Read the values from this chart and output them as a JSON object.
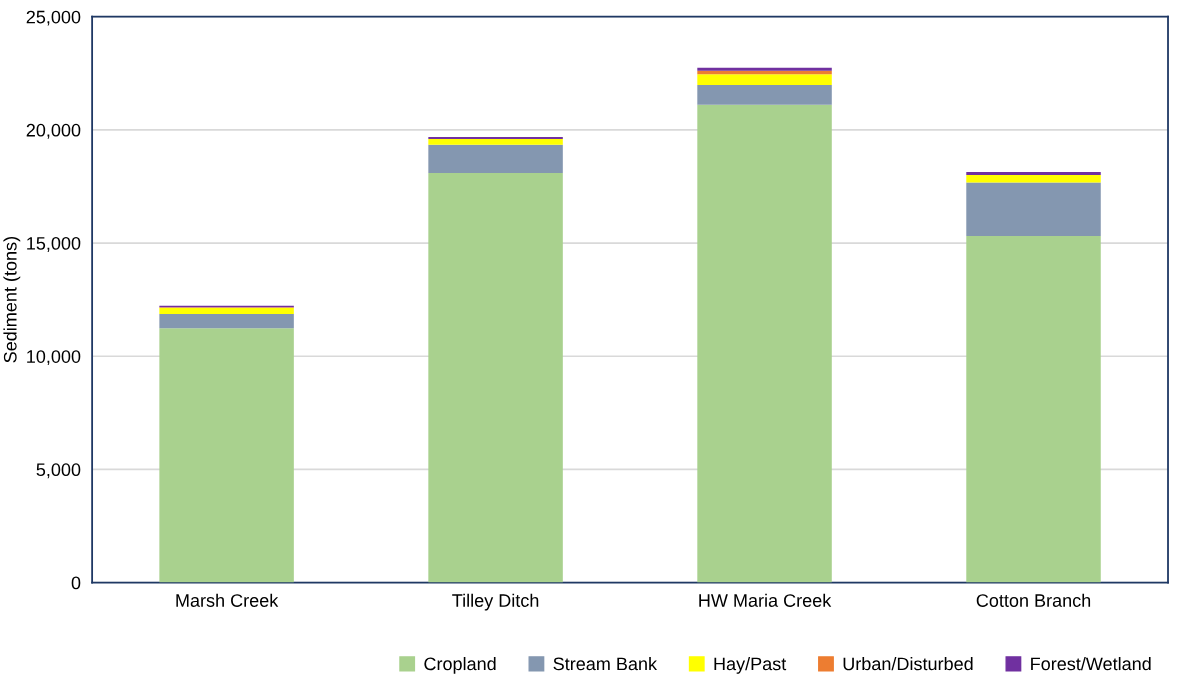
{
  "chart_data": {
    "type": "bar",
    "stacked": true,
    "ylabel": "Sediment (tons)",
    "categories": [
      "Marsh Creek",
      "Tilley Ditch",
      "HW Maria Creek",
      "Cotton Branch"
    ],
    "series": [
      {
        "name": "Cropland",
        "color": "#a9d18e",
        "values": [
          11230,
          18100,
          21110,
          15310
        ]
      },
      {
        "name": "Stream Bank",
        "color": "#8497b0",
        "values": [
          630,
          1240,
          870,
          2360
        ]
      },
      {
        "name": "Hay/Past",
        "color": "#ffff00",
        "values": [
          280,
          260,
          480,
          340
        ]
      },
      {
        "name": "Urban/Disturbed",
        "color": "#ed7d31",
        "values": [
          20,
          null,
          150,
          null
        ]
      },
      {
        "name": "Forest/Wetland",
        "color": "#7030a0",
        "values": [
          70,
          80,
          130,
          130
        ]
      }
    ],
    "ylim": [
      0,
      25000
    ],
    "yticks": [
      {
        "value": 0,
        "label": "0"
      },
      {
        "value": 5000,
        "label": "5,000"
      },
      {
        "value": 10000,
        "label": "10,000"
      },
      {
        "value": 15000,
        "label": "15,000"
      },
      {
        "value": 20000,
        "label": "20,000"
      },
      {
        "value": 25000,
        "label": "25,000"
      }
    ],
    "grid": "y",
    "legend": "bottom right"
  }
}
